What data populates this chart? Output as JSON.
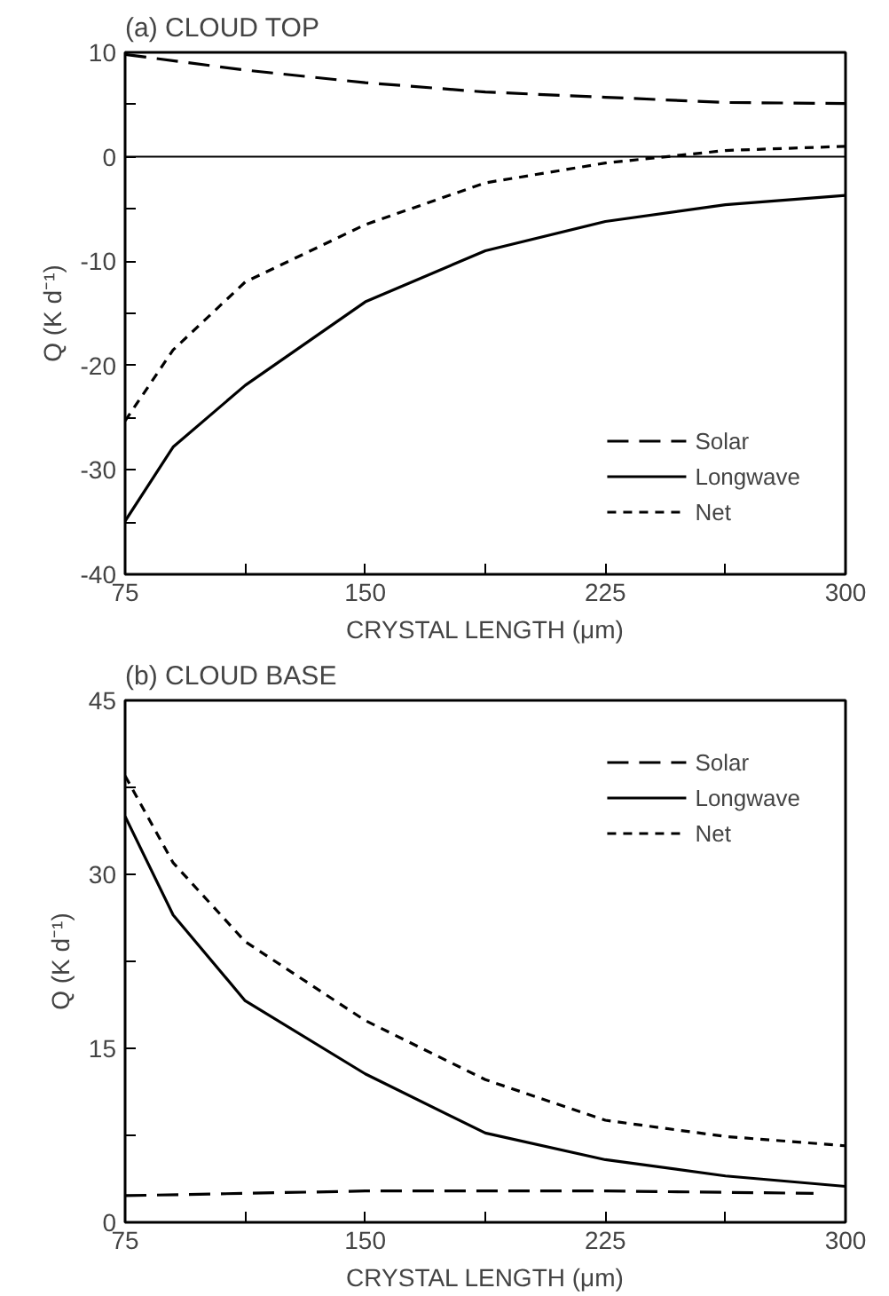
{
  "chart_data": [
    {
      "type": "line",
      "title": "(a) CLOUD TOP",
      "xlabel": "CRYSTAL LENGTH (μm)",
      "ylabel": "Q (K d⁻¹)",
      "xlim": [
        75,
        300
      ],
      "xticks": [
        75,
        {
          "value": 112.5,
          "label": null
        },
        150,
        {
          "value": 187.5,
          "label": null
        },
        225,
        {
          "value": 262.5,
          "label": null
        },
        300
      ],
      "ylim": [
        -40,
        10
      ],
      "yticks": [
        -40,
        {
          "value": -35,
          "label": null
        },
        -30,
        {
          "value": -25,
          "label": null
        },
        -20,
        {
          "value": -15,
          "label": null
        },
        -10,
        {
          "value": -5,
          "label": null
        },
        0,
        {
          "value": 5,
          "label": null
        },
        10
      ],
      "grid": false,
      "legend": "bottom right",
      "ref_lines": [
        {
          "axis": "y",
          "value": 0,
          "color": "#000000"
        }
      ],
      "series": [
        {
          "name": "Solar",
          "color": "#000000",
          "line_style": "dashed",
          "x": [
            75,
            112.5,
            150,
            187.5,
            225,
            262.5,
            300
          ],
          "values": [
            9.8,
            8.3,
            7.1,
            6.2,
            5.7,
            5.2,
            5.1
          ]
        },
        {
          "name": "Longwave",
          "color": "#000000",
          "line_style": "solid",
          "x": [
            75,
            90,
            112.5,
            150,
            187.5,
            225,
            262.5,
            300
          ],
          "values": [
            -34.9,
            -27.8,
            -21.9,
            -13.9,
            -9.0,
            -6.2,
            -4.6,
            -3.7
          ]
        },
        {
          "name": "Net",
          "color": "#000000",
          "line_style": "dotted",
          "x": [
            75,
            90,
            112.5,
            150,
            187.5,
            225,
            262.5,
            300
          ],
          "values": [
            -25.3,
            -18.5,
            -12.0,
            -6.5,
            -2.5,
            -0.6,
            0.6,
            1.0
          ]
        }
      ]
    },
    {
      "type": "line",
      "title": "(b) CLOUD BASE",
      "xlabel": "CRYSTAL LENGTH (μm)",
      "ylabel": "Q (K d⁻¹)",
      "xlim": [
        75,
        300
      ],
      "xticks": [
        75,
        {
          "value": 112.5,
          "label": null
        },
        150,
        {
          "value": 187.5,
          "label": null
        },
        225,
        {
          "value": 262.5,
          "label": null
        },
        300
      ],
      "ylim": [
        0,
        45
      ],
      "yticks": [
        0,
        {
          "value": 7.5,
          "label": null
        },
        15,
        {
          "value": 22.5,
          "label": null
        },
        30,
        {
          "value": 37.5,
          "label": null
        },
        45
      ],
      "grid": false,
      "legend": "top right",
      "series": [
        {
          "name": "Solar",
          "color": "#000000",
          "line_style": "dashed",
          "x": [
            75,
            150,
            225,
            290
          ],
          "values": [
            2.3,
            2.7,
            2.7,
            2.5
          ]
        },
        {
          "name": "Longwave",
          "color": "#000000",
          "line_style": "solid",
          "x": [
            75,
            90,
            112.5,
            150,
            187.5,
            225,
            262.5,
            300
          ],
          "values": [
            35.0,
            26.5,
            19.1,
            12.8,
            7.7,
            5.4,
            4.0,
            3.1
          ]
        },
        {
          "name": "Net",
          "color": "#000000",
          "line_style": "dotted",
          "x": [
            75,
            90,
            112.5,
            150,
            187.5,
            225,
            262.5,
            300
          ],
          "values": [
            38.5,
            31.0,
            24.2,
            17.4,
            12.3,
            8.8,
            7.4,
            6.6
          ]
        }
      ]
    }
  ]
}
